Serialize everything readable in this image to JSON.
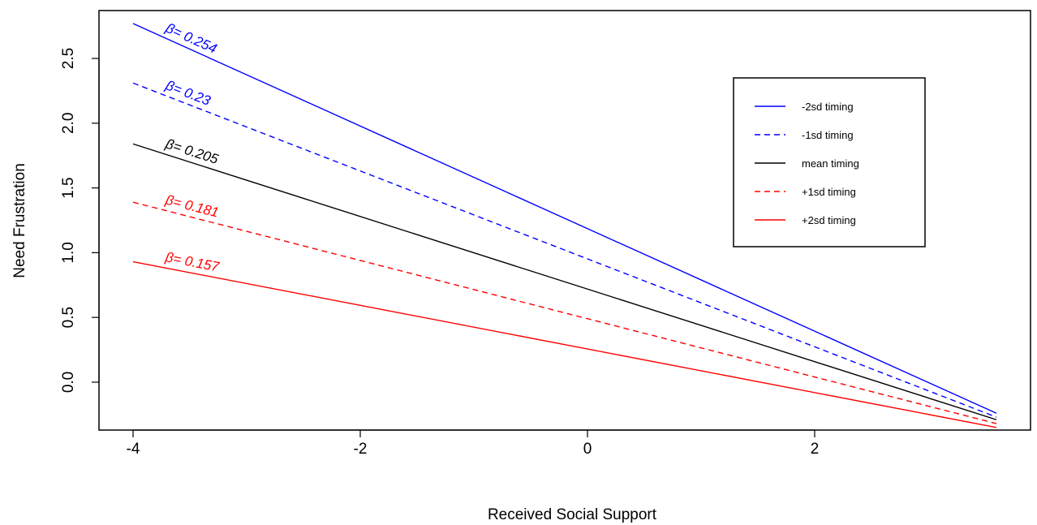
{
  "chart_data": {
    "type": "line",
    "xlabel": "Received Social Support",
    "ylabel": "Need Frustration",
    "xlim": [
      -4.3,
      3.9
    ],
    "ylim": [
      -0.37,
      2.87
    ],
    "x_ticks": [
      "-4",
      "-2",
      "0",
      "2"
    ],
    "y_ticks": [
      "0.0",
      "0.5",
      "1.0",
      "1.5",
      "2.0",
      "2.5"
    ],
    "beta_symbol": "β",
    "legend_position": "top-right",
    "series": [
      {
        "name": "-2sd timing",
        "color": "#0000ff",
        "dash": "solid",
        "x": [
          -4,
          3.6
        ],
        "y": [
          2.77,
          -0.24
        ],
        "beta": "= 0.254",
        "beta_color": "#0000ff"
      },
      {
        "name": "-1sd timing",
        "color": "#0000ff",
        "dash": "dashed",
        "x": [
          -4,
          3.6
        ],
        "y": [
          2.31,
          -0.27
        ],
        "beta": "= 0.23",
        "beta_color": "#0000ff"
      },
      {
        "name": "mean timing",
        "color": "#000000",
        "dash": "solid",
        "x": [
          -4,
          3.6
        ],
        "y": [
          1.84,
          -0.29
        ],
        "beta": "= 0.205",
        "beta_color": "#000000"
      },
      {
        "name": "+1sd timing",
        "color": "#ff0000",
        "dash": "dashed",
        "x": [
          -4,
          3.6
        ],
        "y": [
          1.39,
          -0.32
        ],
        "beta": "= 0.181",
        "beta_color": "#ff0000"
      },
      {
        "name": "+2sd timing",
        "color": "#ff0000",
        "dash": "solid",
        "x": [
          -4,
          3.6
        ],
        "y": [
          0.93,
          -0.35
        ],
        "beta": "= 0.157",
        "beta_color": "#ff0000"
      }
    ]
  }
}
